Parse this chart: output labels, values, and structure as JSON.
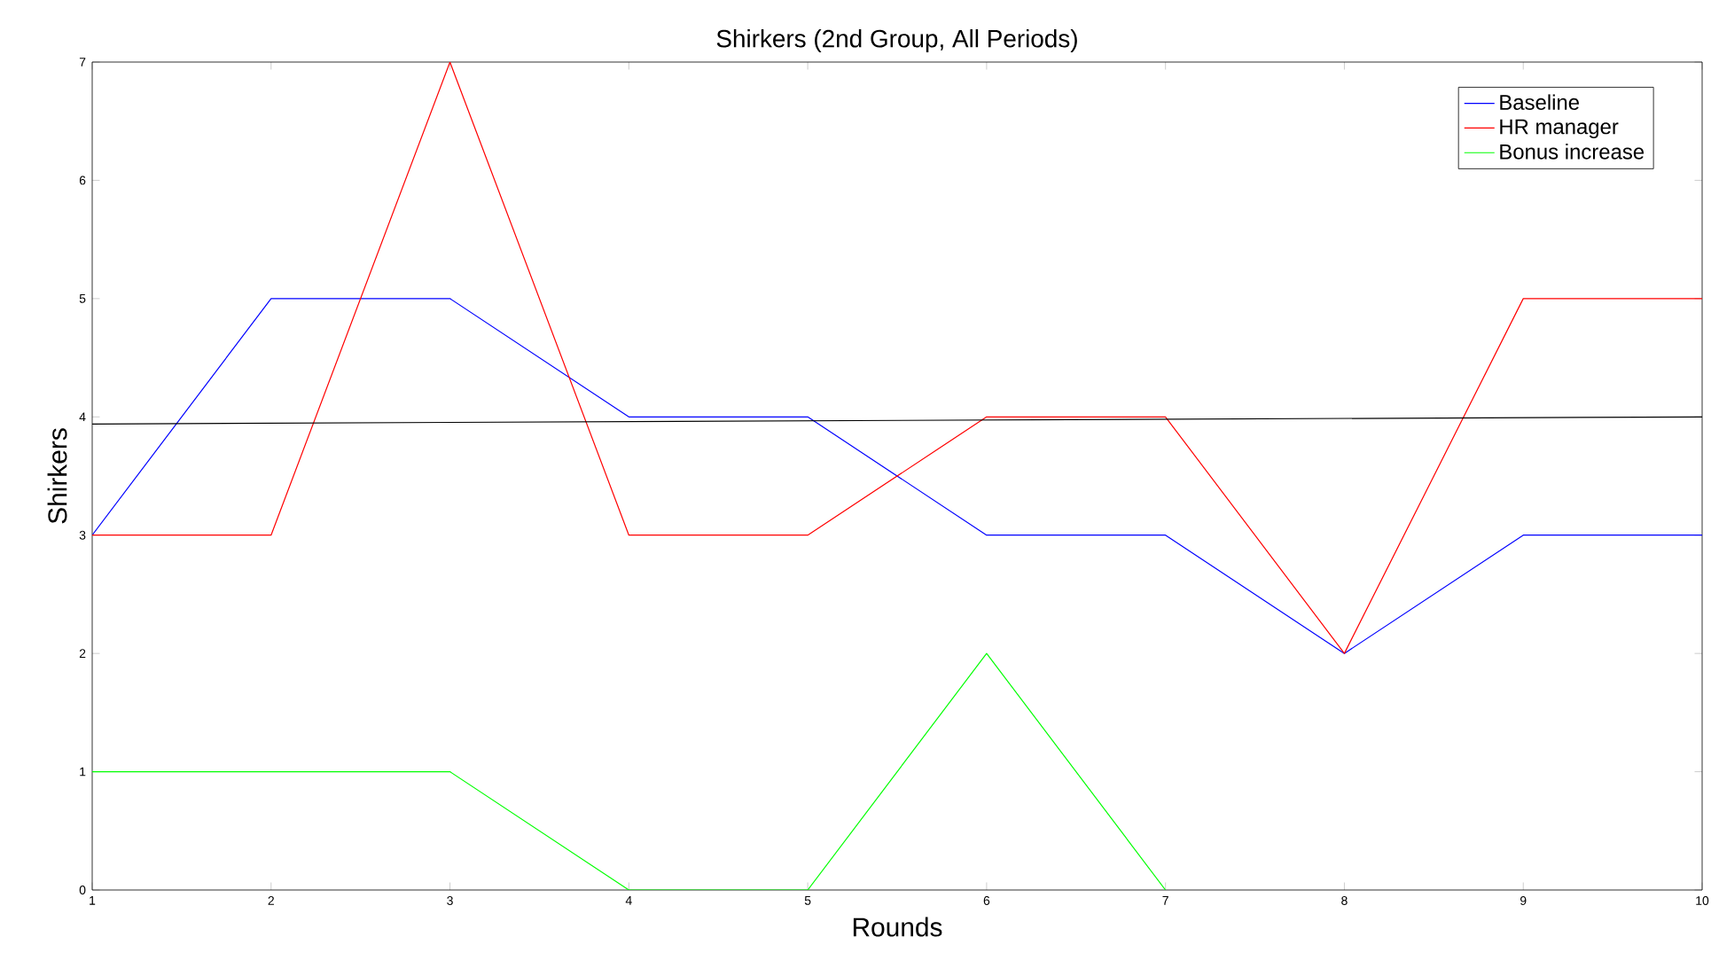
{
  "chart_data": {
    "type": "line",
    "title": "Shirkers (2nd Group, All Periods)",
    "xlabel": "Rounds",
    "ylabel": "Shirkers",
    "x": [
      1,
      2,
      3,
      4,
      5,
      6,
      7,
      8,
      9,
      10
    ],
    "series": [
      {
        "name": "Baseline",
        "color": "#0000ff",
        "values": [
          3,
          5,
          5,
          4,
          4,
          3,
          3,
          2,
          3,
          3
        ]
      },
      {
        "name": "HR manager",
        "color": "#ff0000",
        "values": [
          3,
          3,
          7,
          3,
          3,
          4,
          4,
          2,
          5,
          5
        ]
      },
      {
        "name": "Bonus increase",
        "color": "#00ff00",
        "values": [
          1,
          1,
          1,
          0,
          0,
          2,
          0,
          null,
          null,
          null
        ]
      },
      {
        "type": "line",
        "color": "#000000",
        "x": [
          1,
          10
        ],
        "values": [
          3.94,
          4.0
        ]
      }
    ],
    "xlim": [
      1,
      10
    ],
    "ylim": [
      0,
      7
    ],
    "xticks": [
      1,
      2,
      3,
      4,
      5,
      6,
      7,
      8,
      9,
      10
    ],
    "yticks": [
      0,
      1,
      2,
      3,
      4,
      5,
      6,
      7
    ],
    "legend": "top right",
    "grid": false,
    "marker": "none",
    "line_style": "solid"
  }
}
